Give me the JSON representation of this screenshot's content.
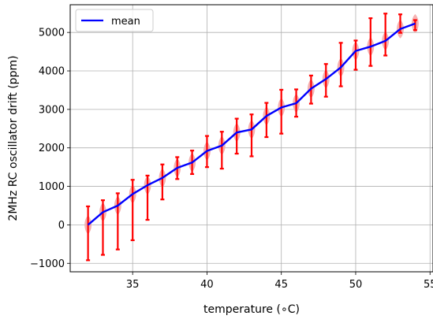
{
  "chart_data": {
    "type": "violin",
    "title": "",
    "xlabel": "temperature (∘C)",
    "ylabel": "2MHz RC oscillator drift (ppm)",
    "xlim": [
      30.8,
      55.2
    ],
    "ylim": [
      -1220,
      5720
    ],
    "xticks": [
      35,
      40,
      45,
      50,
      55
    ],
    "yticks": [
      -1000,
      0,
      1000,
      2000,
      3000,
      4000,
      5000
    ],
    "grid": true,
    "legend": {
      "position": "top-left",
      "entries": [
        "mean"
      ]
    },
    "colors": {
      "mean_line": "#0000ff",
      "violin_fill": "#f4a6a6",
      "violin_edge": "#ff0000",
      "grid": "#b0b0b0"
    },
    "series": [
      {
        "name": "mean",
        "type": "line",
        "x": [
          32,
          33,
          34,
          35,
          36,
          37,
          38,
          39,
          40,
          41,
          42,
          43,
          44,
          45,
          46,
          47,
          48,
          49,
          50,
          51,
          52,
          53,
          54
        ],
        "values": [
          0,
          330,
          500,
          800,
          1030,
          1220,
          1480,
          1620,
          1920,
          2060,
          2400,
          2480,
          2830,
          3050,
          3160,
          3540,
          3790,
          4090,
          4520,
          4630,
          4780,
          5090,
          5230
        ]
      }
    ],
    "distributions": {
      "x": [
        32,
        33,
        34,
        35,
        36,
        37,
        38,
        39,
        40,
        41,
        42,
        43,
        44,
        45,
        46,
        47,
        48,
        49,
        50,
        51,
        52,
        53,
        54
      ],
      "min": [
        -920,
        -780,
        -640,
        -400,
        130,
        660,
        1190,
        1320,
        1500,
        1460,
        1850,
        1780,
        2280,
        2370,
        2810,
        3150,
        3330,
        3600,
        4030,
        4130,
        4400,
        4990,
        5060
      ],
      "max": [
        480,
        640,
        820,
        1170,
        1280,
        1570,
        1760,
        1930,
        2310,
        2420,
        2760,
        2870,
        3170,
        3510,
        3520,
        3880,
        4180,
        4730,
        4790,
        5370,
        5490,
        5470,
        5320
      ],
      "mean": [
        0,
        330,
        500,
        800,
        1030,
        1220,
        1480,
        1620,
        1920,
        2060,
        2400,
        2480,
        2830,
        3050,
        3160,
        3540,
        3790,
        4090,
        4520,
        4630,
        4780,
        5090,
        5230
      ]
    }
  }
}
